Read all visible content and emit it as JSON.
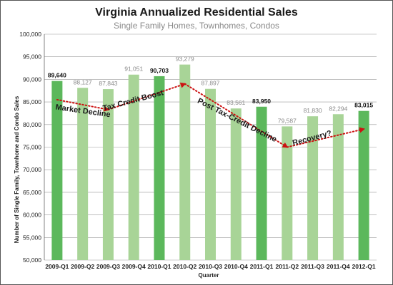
{
  "chart_data": {
    "type": "bar",
    "title": "Virginia Annualized Residential Sales",
    "subtitle": "Single Family Homes, Townhomes, Condos",
    "xlabel": "Quarter",
    "ylabel": "Number of Single Family, Townhome and Condo Sales",
    "ylim": [
      50000,
      100000
    ],
    "ytick_step": 5000,
    "grid": true,
    "categories": [
      "2009-Q1",
      "2009-Q2",
      "2009-Q3",
      "2009-Q4",
      "2010-Q1",
      "2010-Q2",
      "2010-Q3",
      "2010-Q4",
      "2011-Q1",
      "2011-Q2",
      "2011-Q3",
      "2011-Q4",
      "2012-Q1"
    ],
    "values": [
      89640,
      88127,
      87843,
      91051,
      90703,
      93279,
      87897,
      83561,
      83950,
      79587,
      81830,
      82294,
      83015
    ],
    "value_labels": [
      "89,640",
      "88,127",
      "87,843",
      "91,051",
      "90,703",
      "93,279",
      "87,897",
      "83,561",
      "83,950",
      "79,587",
      "81,830",
      "82,294",
      "83,015"
    ],
    "highlighted": [
      true,
      false,
      false,
      false,
      true,
      false,
      false,
      false,
      true,
      false,
      false,
      false,
      true
    ],
    "colors": {
      "highlight": "#5cb85c",
      "normal": "#a8d497",
      "highlight_label": "#111111",
      "normal_label": "#8a8a8a",
      "trend": "#cc1111",
      "grid": "#999999"
    },
    "trend_points": [
      {
        "x": "2009-Q1",
        "y": 85500
      },
      {
        "x": "2009-Q3",
        "y": 83300
      },
      {
        "x": "2010-Q2",
        "y": 89000
      },
      {
        "x": "2011-Q2",
        "y": 75000
      },
      {
        "x": "2012-Q1",
        "y": 79000
      }
    ],
    "annotations": [
      {
        "text": "Market Decline",
        "x": "2009-Q2",
        "y": 82500,
        "rotation": 8
      },
      {
        "text": "Tax Credit Boost",
        "x": "2009-Q4",
        "y": 84800,
        "rotation": -15
      },
      {
        "text": "Post Tax-Credit Decline",
        "x": "2010-Q4",
        "y": 80500,
        "rotation": 27
      },
      {
        "text": "Recovery?",
        "x": "2011-Q3",
        "y": 76500,
        "rotation": -15
      }
    ]
  }
}
